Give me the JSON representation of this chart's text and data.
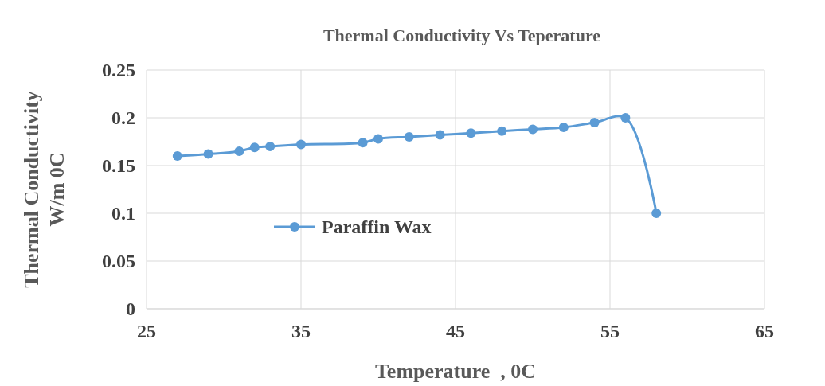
{
  "chart_data": {
    "type": "line",
    "title": "Thermal Conductivity Vs Teperature",
    "xlabel": "Temperature  , 0C",
    "ylabel": "Thermal Conductivity\nW/m 0C",
    "x": [
      27,
      29,
      31,
      32,
      33,
      35,
      39,
      40,
      42,
      44,
      46,
      48,
      50,
      52,
      54,
      56,
      58
    ],
    "series": [
      {
        "name": "Paraffin Wax",
        "color": "#5b9bd5",
        "values": [
          0.16,
          0.162,
          0.165,
          0.169,
          0.17,
          0.172,
          0.174,
          0.178,
          0.18,
          0.182,
          0.184,
          0.186,
          0.188,
          0.19,
          0.195,
          0.2,
          0.1
        ]
      }
    ],
    "xlim": [
      25,
      65
    ],
    "xticks": [
      25,
      35,
      45,
      55,
      65
    ],
    "ylim": [
      0,
      0.25
    ],
    "yticks": [
      0,
      0.05,
      0.1,
      0.15,
      0.2,
      0.25
    ],
    "grid": true,
    "legend": "left",
    "marker": "circle",
    "line_style": "solid"
  }
}
